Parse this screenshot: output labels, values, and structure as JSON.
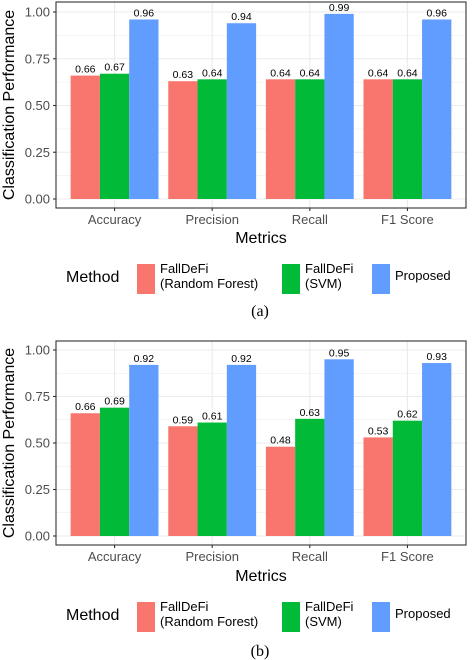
{
  "colors": {
    "FallDeFi (Random Forest)": "#F8766D",
    "FallDeFi (SVM)": "#00BA38",
    "Proposed": "#619CFF"
  },
  "legend": {
    "title": "Method",
    "items": [
      {
        "series": "FallDeFi (Random Forest)",
        "lines": [
          "FallDeFi",
          "(Random Forest)"
        ]
      },
      {
        "series": "FallDeFi (SVM)",
        "lines": [
          "FallDeFi",
          "(SVM)"
        ]
      },
      {
        "series": "Proposed",
        "lines": [
          "Proposed"
        ]
      }
    ]
  },
  "chart_data": [
    {
      "type": "bar",
      "caption": "(a)",
      "categories": [
        "Accuracy",
        "Precision",
        "Recall",
        "F1 Score"
      ],
      "series": [
        {
          "name": "FallDeFi (Random Forest)",
          "values": [
            0.66,
            0.63,
            0.64,
            0.64
          ],
          "labels": [
            "0.66",
            "0.63",
            "0.64",
            "0.64"
          ]
        },
        {
          "name": "FallDeFi (SVM)",
          "values": [
            0.67,
            0.64,
            0.64,
            0.64
          ],
          "labels": [
            "0.67",
            "0.64",
            "0.64",
            "0.64"
          ]
        },
        {
          "name": "Proposed",
          "values": [
            0.96,
            0.94,
            0.99,
            0.96
          ],
          "labels": [
            "0.96",
            "0.94",
            "0.99",
            "0.96"
          ]
        }
      ],
      "xlabel": "Metrics",
      "ylabel": "Classification Performance",
      "ylim": [
        0,
        1.0
      ],
      "yticks": [
        "0.00",
        "0.25",
        "0.50",
        "0.75",
        "1.00"
      ],
      "grid": true,
      "legend_position": "bottom"
    },
    {
      "type": "bar",
      "caption": "(b)",
      "categories": [
        "Accuracy",
        "Precision",
        "Recall",
        "F1 Score"
      ],
      "series": [
        {
          "name": "FallDeFi (Random Forest)",
          "values": [
            0.66,
            0.59,
            0.48,
            0.53
          ],
          "labels": [
            "0.66",
            "0.59",
            "0.48",
            "0.53"
          ]
        },
        {
          "name": "FallDeFi (SVM)",
          "values": [
            0.69,
            0.61,
            0.63,
            0.62
          ],
          "labels": [
            "0.69",
            "0.61",
            "0.63",
            "0.62"
          ]
        },
        {
          "name": "Proposed",
          "values": [
            0.92,
            0.92,
            0.95,
            0.93
          ],
          "labels": [
            "0.92",
            "0.92",
            "0.95",
            "0.93"
          ]
        }
      ],
      "xlabel": "Metrics",
      "ylabel": "Classification Performance",
      "ylim": [
        0,
        1.0
      ],
      "yticks": [
        "0.00",
        "0.25",
        "0.50",
        "0.75",
        "1.00"
      ],
      "grid": true,
      "legend_position": "bottom"
    }
  ]
}
